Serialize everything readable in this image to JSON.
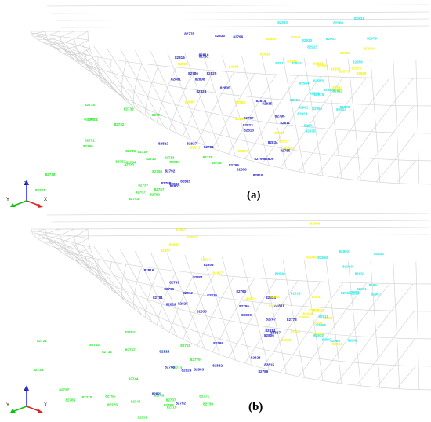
{
  "colors": {
    "green": "#22ee22",
    "blue": "#2222cc",
    "yellow": "#f4f400",
    "cyan": "#22e8e8",
    "mesh": "#cfcfcf"
  },
  "axes": {
    "x": "X",
    "y": "Y",
    "z": "Z"
  },
  "panels": [
    {
      "label": "(a)",
      "nodes": {
        "blue": [
          "82805",
          "82819",
          "82834",
          "82824",
          "82827",
          "82823",
          "82825",
          "82815",
          "82811",
          "82810",
          "82788",
          "82790",
          "82791",
          "82792",
          "82795",
          "82796",
          "82799",
          "82800",
          "82801",
          "82803",
          "82806",
          "82808",
          "82813",
          "82814",
          "82816",
          "82822",
          "82787",
          "82833",
          "82832",
          "82835",
          "82778",
          "82781",
          "82785",
          "82786"
        ],
        "green": [
          "82769",
          "82731",
          "82771",
          "82755",
          "82752",
          "82753",
          "82743",
          "82713",
          "82738",
          "82733",
          "82721",
          "82707",
          "82734",
          "82744",
          "82754",
          "82736",
          "82715",
          "82725",
          "82762",
          "82779",
          "82766",
          "82757",
          "82751",
          "82719",
          "82733",
          "82737"
        ],
        "yellow": [
          "82866",
          "82879",
          "82880",
          "82885",
          "82887",
          "82863",
          "82869",
          "82885",
          "82864",
          "82860",
          "82871",
          "82873",
          "82902",
          "82897",
          "82902",
          "82924",
          "82941",
          "82937",
          "82945",
          "82983",
          "82989",
          "82909",
          "82917",
          "82907"
        ],
        "cyan": [
          "82959",
          "82950",
          "82953",
          "82962",
          "82960",
          "82961",
          "82964",
          "82970",
          "82979",
          "82928",
          "82942",
          "82901",
          "82903",
          "82912",
          "82930",
          "82914",
          "82933",
          "82915",
          "82913",
          "82975",
          "82971",
          "82952",
          "82931",
          "82914"
        ]
      }
    },
    {
      "label": "(b)",
      "nodes": {
        "blue": [
          "82819",
          "82823",
          "82834",
          "82836",
          "82824",
          "82827",
          "82825",
          "82815",
          "82811",
          "82812",
          "82788",
          "82790",
          "82791",
          "82792",
          "82795",
          "82796",
          "82799",
          "82800",
          "82801",
          "82803",
          "82806",
          "82808",
          "82813",
          "82814",
          "82816",
          "82822",
          "82787",
          "82833",
          "82832",
          "82778",
          "82781",
          "82786"
        ],
        "green": [
          "82769",
          "82771",
          "82755",
          "82753",
          "82745",
          "82713",
          "82738",
          "82733",
          "82721",
          "82707",
          "82734",
          "82744",
          "82754",
          "82736",
          "82715",
          "82725",
          "82762",
          "82779",
          "82766",
          "82757",
          "82751",
          "82719",
          "82737",
          "82732"
        ],
        "yellow": [
          "82906",
          "82948",
          "82936",
          "82946",
          "82909",
          "82920",
          "82867",
          "82858",
          "82880",
          "82885",
          "82873",
          "82983",
          "82907",
          "82897",
          "82941",
          "82917",
          "82989",
          "82945",
          "82924",
          "82857",
          "82875",
          "82853"
        ],
        "cyan": [
          "82950",
          "82968",
          "82952",
          "82957",
          "82942",
          "82900",
          "82913",
          "82955",
          "82903",
          "82930",
          "82915",
          "82931",
          "82933",
          "82912",
          "82914",
          "82902",
          "82947",
          "82953",
          "82954"
        ]
      }
    }
  ]
}
